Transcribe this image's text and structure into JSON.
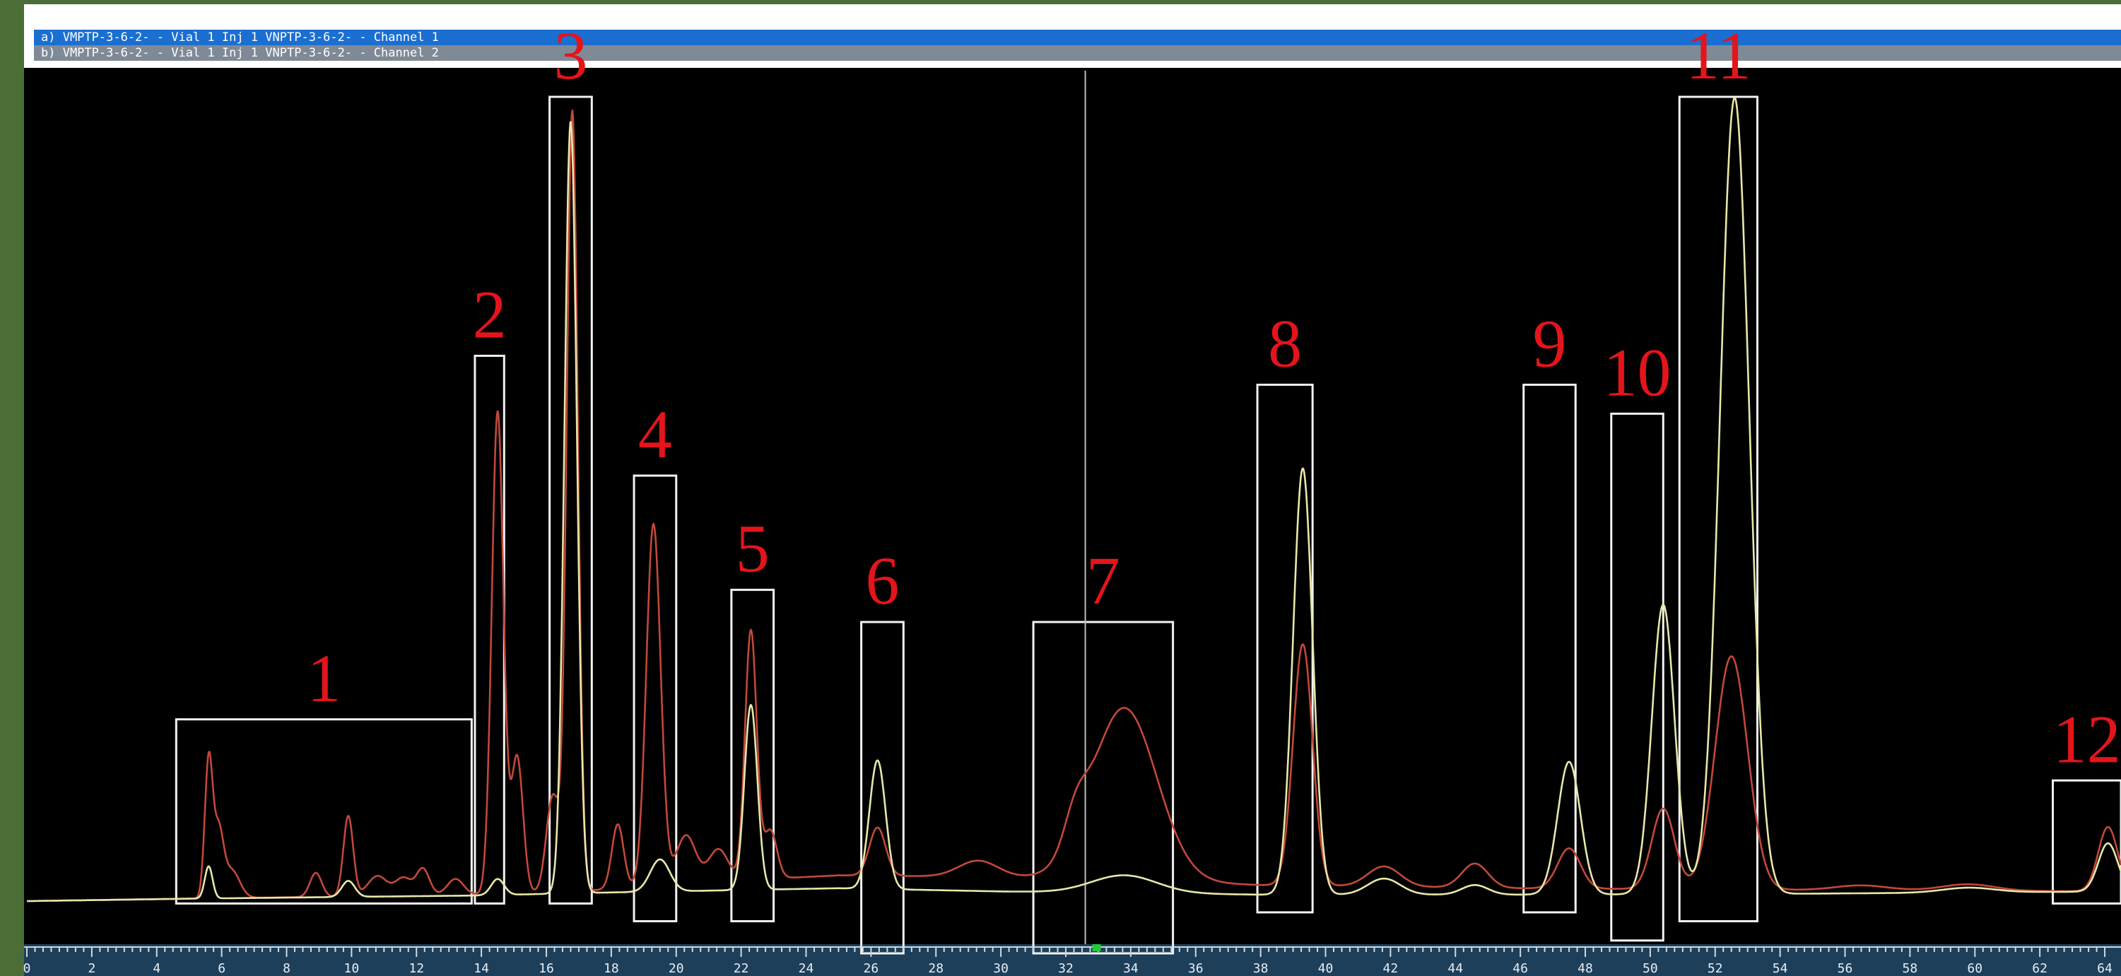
{
  "legend": {
    "a": "a) VMPTP-3-6-2- - Vial 1 Inj 1 VNPTP-3-6-2- - Channel 1",
    "b": "b) VMPTP-3-6-2- - Vial 1 Inj 1 VNPTP-3-6-2- - Channel 2"
  },
  "chart_data": {
    "type": "line",
    "title": "",
    "xlabel": "",
    "ylabel": "",
    "xlim": [
      0,
      64.5
    ],
    "ylim": [
      0,
      100
    ],
    "grid": false,
    "x_ticks": [
      0,
      2,
      4,
      6,
      8,
      10,
      12,
      14,
      16,
      18,
      20,
      22,
      24,
      26,
      28,
      30,
      32,
      34,
      36,
      38,
      40,
      42,
      44,
      46,
      48,
      50,
      52,
      54,
      56,
      58,
      60,
      62,
      64
    ],
    "x_tick_labels": [
      "0",
      "2",
      "4",
      "6",
      "8",
      "10",
      "12",
      "14",
      "16",
      "18",
      "20",
      "22",
      "24",
      "26",
      "28",
      "30",
      "32",
      "34",
      "36",
      "38",
      "40",
      "42",
      "44",
      "46",
      "48",
      "50",
      "52",
      "54",
      "56",
      "58",
      "60",
      "62",
      "64"
    ],
    "cursor_x": 32.6,
    "series": [
      {
        "name": "a",
        "color": "#c2483a",
        "baseline": [
          [
            0,
            0
          ],
          [
            5,
            0.3
          ],
          [
            14,
            0.8
          ],
          [
            17,
            1.2
          ],
          [
            21,
            2.4
          ],
          [
            25,
            3.2
          ],
          [
            30,
            3.0
          ],
          [
            38,
            2.0
          ],
          [
            46,
            1.6
          ],
          [
            54,
            1.4
          ],
          [
            64.5,
            1.2
          ]
        ],
        "peaks": [
          [
            5.6,
            17,
            0.12
          ],
          [
            5.9,
            8,
            0.15
          ],
          [
            6.3,
            3.5,
            0.25
          ],
          [
            8.9,
            3,
            0.18
          ],
          [
            9.9,
            10,
            0.15
          ],
          [
            10.8,
            2.5,
            0.3
          ],
          [
            11.6,
            2.2,
            0.25
          ],
          [
            12.2,
            3.3,
            0.2
          ],
          [
            13.2,
            2,
            0.25
          ],
          [
            14.5,
            60,
            0.18
          ],
          [
            15.1,
            17,
            0.18
          ],
          [
            16.2,
            12,
            0.2
          ],
          [
            16.8,
            97,
            0.17
          ],
          [
            18.2,
            8,
            0.18
          ],
          [
            19.3,
            45,
            0.22
          ],
          [
            20.3,
            6,
            0.3
          ],
          [
            21.3,
            4,
            0.3
          ],
          [
            22.3,
            31,
            0.18
          ],
          [
            22.9,
            6,
            0.2
          ],
          [
            26.2,
            6,
            0.25
          ],
          [
            29.3,
            2,
            0.6
          ],
          [
            32.3,
            4,
            0.35
          ],
          [
            33.8,
            21.5,
            1.0
          ],
          [
            39.3,
            30,
            0.3
          ],
          [
            41.8,
            2.5,
            0.5
          ],
          [
            44.6,
            3,
            0.4
          ],
          [
            47.5,
            5,
            0.35
          ],
          [
            50.4,
            10,
            0.35
          ],
          [
            52.5,
            29,
            0.5
          ],
          [
            56.5,
            0.6,
            0.8
          ],
          [
            59.8,
            0.8,
            0.8
          ],
          [
            64.1,
            8,
            0.3
          ]
        ]
      },
      {
        "name": "b",
        "color": "#e8e7a8",
        "baseline": [
          [
            0,
            0
          ],
          [
            5,
            0.3
          ],
          [
            14,
            0.7
          ],
          [
            17,
            1.0
          ],
          [
            25,
            1.6
          ],
          [
            30,
            1.2
          ],
          [
            38,
            0.8
          ],
          [
            46,
            0.8
          ],
          [
            54,
            0.9
          ],
          [
            64.5,
            1.2
          ]
        ],
        "peaks": [
          [
            5.6,
            4,
            0.12
          ],
          [
            9.9,
            2,
            0.2
          ],
          [
            14.5,
            2,
            0.2
          ],
          [
            16.75,
            96,
            0.19
          ],
          [
            19.5,
            4,
            0.3
          ],
          [
            22.3,
            23,
            0.2
          ],
          [
            26.2,
            16,
            0.25
          ],
          [
            33.8,
            2.2,
            1.0
          ],
          [
            39.3,
            53,
            0.3
          ],
          [
            41.8,
            2,
            0.5
          ],
          [
            44.6,
            1.2,
            0.4
          ],
          [
            47.5,
            16.5,
            0.35
          ],
          [
            50.4,
            36,
            0.35
          ],
          [
            52.6,
            99,
            0.45
          ],
          [
            59.8,
            0.6,
            0.8
          ],
          [
            64.1,
            6,
            0.3
          ]
        ]
      }
    ],
    "annotations": [
      {
        "label": "1",
        "x0": 4.6,
        "x1": 13.7,
        "y0": -0.3,
        "y1": 22.6
      },
      {
        "label": "2",
        "x0": 13.8,
        "x1": 14.7,
        "y0": -0.3,
        "y1": 67.8
      },
      {
        "label": "3",
        "x0": 16.1,
        "x1": 17.4,
        "y0": -0.3,
        "y1": 100
      },
      {
        "label": "4",
        "x0": 18.7,
        "x1": 20.0,
        "y0": -2.5,
        "y1": 52.9
      },
      {
        "label": "5",
        "x0": 21.7,
        "x1": 23.0,
        "y0": -2.5,
        "y1": 38.7
      },
      {
        "label": "6",
        "x0": 25.7,
        "x1": 27.0,
        "y0": -6.5,
        "y1": 34.7
      },
      {
        "label": "7",
        "x0": 31.0,
        "x1": 35.3,
        "y0": -6.5,
        "y1": 34.7
      },
      {
        "label": "8",
        "x0": 37.9,
        "x1": 39.6,
        "y0": -1.4,
        "y1": 64.2
      },
      {
        "label": "9",
        "x0": 46.1,
        "x1": 47.7,
        "y0": -1.4,
        "y1": 64.2
      },
      {
        "label": "10",
        "x0": 48.8,
        "x1": 50.4,
        "y0": -4.9,
        "y1": 60.6
      },
      {
        "label": "11",
        "x0": 50.9,
        "x1": 53.3,
        "y0": -2.5,
        "y1": 100
      },
      {
        "label": "12",
        "x0": 62.4,
        "x1": 64.5,
        "y0": -0.3,
        "y1": 15.0
      }
    ]
  }
}
